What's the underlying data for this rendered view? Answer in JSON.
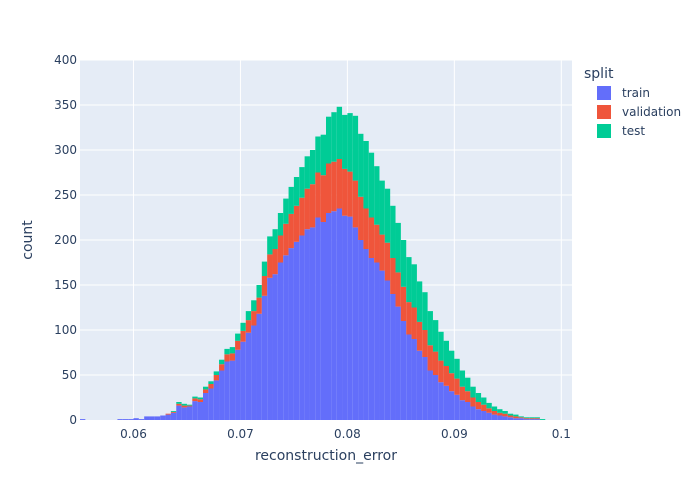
{
  "chart_data": {
    "type": "bar",
    "barmode": "stack",
    "xlabel": "reconstruction_error",
    "ylabel": "count",
    "xlim": [
      0.055,
      0.101
    ],
    "ylim": [
      0,
      400
    ],
    "bin_width": 0.0005,
    "bin_start": 0.055,
    "xticks": [
      0.06,
      0.07,
      0.08,
      0.09,
      0.1
    ],
    "xtick_labels": [
      "0.06",
      "0.07",
      "0.08",
      "0.09",
      "0.1"
    ],
    "yticks": [
      0,
      50,
      100,
      150,
      200,
      250,
      300,
      350,
      400
    ],
    "ytick_labels": [
      "0",
      "50",
      "100",
      "150",
      "200",
      "250",
      "300",
      "350",
      "400"
    ],
    "grid": true,
    "legend_title": "split",
    "legend_position": "top-right",
    "series": [
      {
        "name": "train",
        "color": "#636efa",
        "values": [
          1,
          0,
          0,
          0,
          0,
          0,
          0,
          1,
          1,
          1,
          2,
          1,
          4,
          4,
          4,
          5,
          6,
          8,
          16,
          14,
          15,
          21,
          20,
          30,
          35,
          44,
          55,
          65,
          66,
          78,
          87,
          97,
          105,
          118,
          138,
          158,
          162,
          175,
          183,
          191,
          198,
          205,
          212,
          214,
          225,
          220,
          230,
          232,
          235,
          227,
          226,
          214,
          200,
          190,
          180,
          175,
          166,
          155,
          140,
          126,
          110,
          95,
          90,
          77,
          70,
          55,
          50,
          42,
          38,
          32,
          28,
          22,
          20,
          15,
          12,
          10,
          8,
          6,
          5,
          4,
          3,
          2,
          2,
          1,
          1,
          1,
          0,
          0,
          0,
          0,
          0,
          0
        ]
      },
      {
        "name": "validation",
        "color": "#ef553b",
        "values": [
          0,
          0,
          0,
          0,
          0,
          0,
          0,
          0,
          0,
          0,
          0,
          0,
          0,
          0,
          0,
          0,
          1,
          1,
          2,
          2,
          1,
          3,
          3,
          4,
          5,
          6,
          7,
          8,
          8,
          10,
          12,
          14,
          16,
          18,
          22,
          26,
          28,
          30,
          35,
          38,
          40,
          42,
          45,
          48,
          50,
          52,
          55,
          55,
          55,
          52,
          50,
          52,
          48,
          45,
          45,
          42,
          40,
          42,
          40,
          38,
          38,
          36,
          35,
          32,
          30,
          28,
          26,
          24,
          22,
          20,
          18,
          15,
          12,
          10,
          8,
          7,
          5,
          4,
          3,
          3,
          2,
          2,
          1,
          1,
          1,
          1,
          0,
          0,
          0,
          0,
          0,
          0
        ]
      },
      {
        "name": "test",
        "color": "#00cc96",
        "values": [
          0,
          0,
          0,
          0,
          0,
          0,
          0,
          0,
          0,
          0,
          0,
          0,
          0,
          0,
          0,
          0,
          0,
          1,
          2,
          2,
          1,
          2,
          2,
          3,
          3,
          4,
          5,
          6,
          7,
          8,
          9,
          10,
          12,
          14,
          16,
          20,
          22,
          25,
          28,
          30,
          32,
          34,
          36,
          38,
          40,
          45,
          52,
          55,
          58,
          60,
          65,
          72,
          70,
          75,
          72,
          65,
          60,
          60,
          58,
          55,
          52,
          50,
          48,
          45,
          42,
          38,
          35,
          32,
          28,
          25,
          22,
          18,
          15,
          12,
          10,
          8,
          6,
          5,
          4,
          3,
          2,
          2,
          1,
          1,
          1,
          1,
          1,
          0,
          0,
          0,
          0,
          0
        ]
      }
    ]
  }
}
